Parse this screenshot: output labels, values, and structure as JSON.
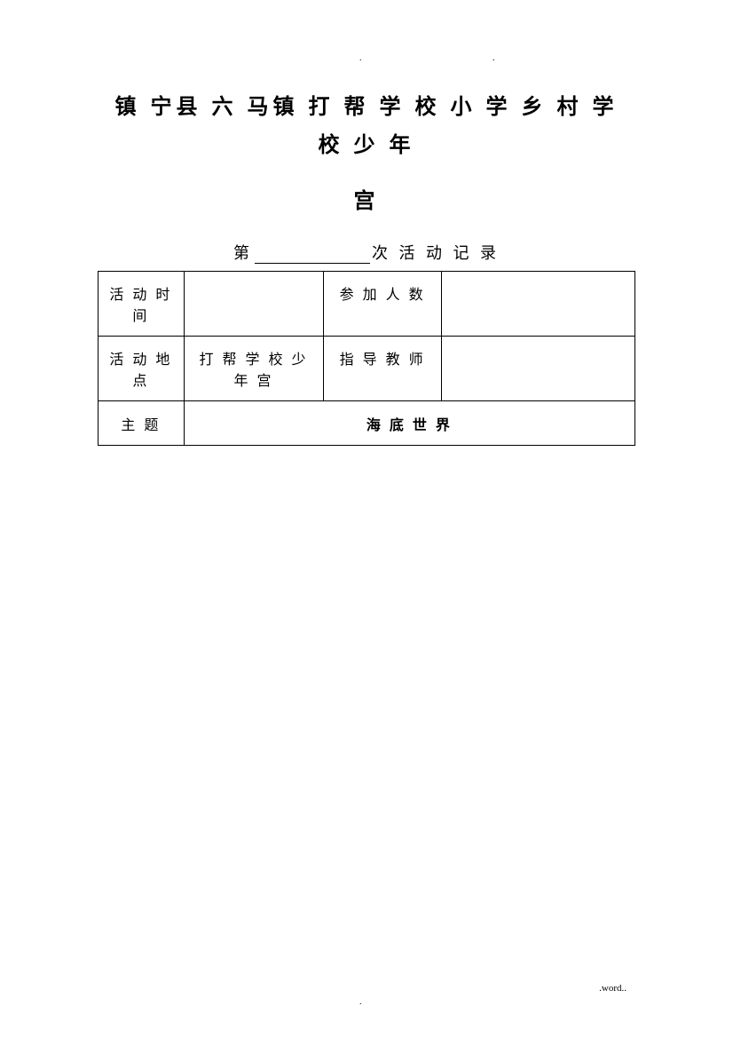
{
  "title_line1": "镇 宁县 六 马镇 打 帮 学 校 小 学 乡 村 学 校 少 年",
  "title_line2": "宫",
  "subtitle_prefix": "第",
  "subtitle_suffix": "次 活 动 记 录",
  "table": {
    "row1": {
      "label1": "活 动 时 间",
      "value1": "",
      "label2": "参 加 人 数",
      "value2": ""
    },
    "row2": {
      "label1": "活 动 地 点",
      "value1": "打 帮 学 校 少 年 宫",
      "label2": "指 导 教 师",
      "value2": ""
    },
    "row3": {
      "label": "主 题",
      "value": "海 底 世 界"
    }
  },
  "footer": ".word..",
  "dots": "."
}
